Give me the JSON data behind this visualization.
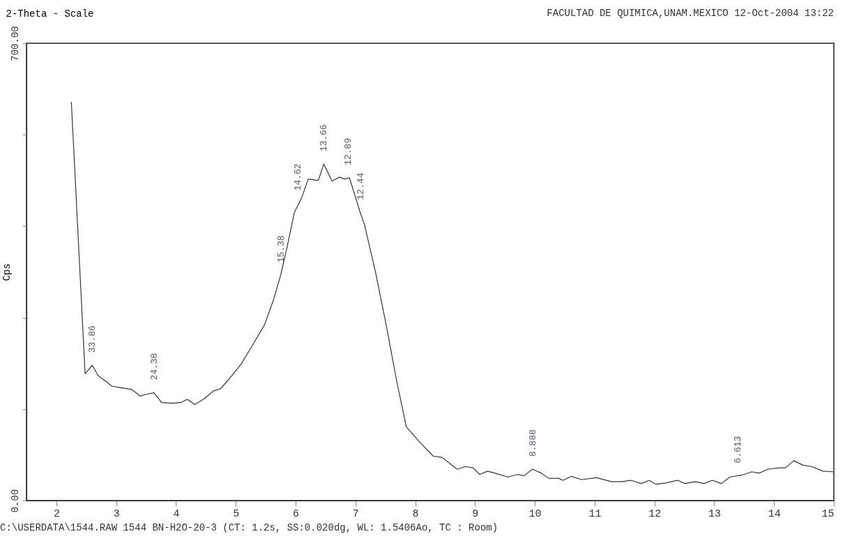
{
  "chart_data": {
    "type": "line",
    "title": "FACULTAD DE QUIMICA,UNAM.MEXICO 12-Oct-2004 13:22",
    "xlabel": "2-Theta - Scale",
    "ylabel": "Cps",
    "color": "#3a3040",
    "grid": false,
    "xlim": [
      1.5,
      15
    ],
    "xticks": [
      2,
      3,
      4,
      5,
      6,
      7,
      8,
      9,
      10,
      11,
      12,
      13,
      14,
      15
    ],
    "ylim": [
      0,
      700
    ],
    "yticks": [
      {
        "value": 0,
        "label": "0.00"
      },
      {
        "value": 140,
        "label": null
      },
      {
        "value": 280,
        "label": null
      },
      {
        "value": 420,
        "label": null
      },
      {
        "value": 560,
        "label": null
      },
      {
        "value": 700,
        "label": "700.00"
      }
    ],
    "x": [
      2.25,
      2.48,
      2.6,
      2.7,
      2.82,
      2.93,
      3.06,
      3.26,
      3.4,
      3.52,
      3.63,
      3.76,
      3.93,
      4.08,
      4.19,
      4.31,
      4.46,
      4.63,
      4.74,
      4.86,
      5.09,
      5.28,
      5.48,
      5.63,
      5.75,
      5.86,
      5.98,
      6.1,
      6.21,
      6.38,
      6.47,
      6.61,
      6.73,
      6.82,
      6.9,
      7.08,
      7.15,
      7.34,
      7.52,
      7.69,
      7.85,
      8.07,
      8.3,
      8.45,
      8.7,
      8.84,
      8.97,
      9.08,
      9.21,
      9.33,
      9.55,
      9.71,
      9.82,
      9.96,
      10.11,
      10.23,
      10.4,
      10.47,
      10.61,
      10.79,
      11.03,
      11.28,
      11.46,
      11.61,
      11.78,
      11.91,
      12.02,
      12.2,
      12.39,
      12.51,
      12.68,
      12.83,
      12.97,
      13.12,
      13.26,
      13.46,
      13.63,
      13.75,
      13.9,
      14.09,
      14.19,
      14.33,
      14.49,
      14.63,
      14.82,
      14.99
    ],
    "values": [
      610,
      194,
      207,
      191,
      183,
      175,
      173,
      170,
      160,
      163,
      165,
      150,
      149,
      150,
      155,
      147,
      155,
      168,
      171,
      183,
      209,
      238,
      269,
      307,
      345,
      389,
      441,
      463,
      492,
      490,
      515,
      489,
      495,
      492,
      494,
      441,
      423,
      348,
      266,
      183,
      113,
      90,
      68,
      66,
      48,
      52,
      50,
      40,
      45,
      42,
      36,
      40,
      38,
      48,
      42,
      34,
      34,
      31,
      37,
      32,
      35,
      29,
      29,
      31,
      26,
      31,
      25,
      27,
      31,
      26,
      29,
      26,
      31,
      26,
      36,
      39,
      44,
      42,
      48,
      50,
      50,
      61,
      54,
      52,
      45,
      44
    ],
    "annotations": [
      {
        "text": "33.86",
        "x": 2.6,
        "y": 207
      },
      {
        "text": "24.38",
        "x": 3.63,
        "y": 165
      },
      {
        "text": "15.38",
        "x": 5.75,
        "y": 345
      },
      {
        "text": "14.62",
        "x": 6.04,
        "y": 455
      },
      {
        "text": "13.66",
        "x": 6.47,
        "y": 515
      },
      {
        "text": "12.89",
        "x": 6.88,
        "y": 494
      },
      {
        "text": "12.44",
        "x": 7.08,
        "y": 441
      },
      {
        "text": "8.888",
        "x": 9.96,
        "y": 48
      },
      {
        "text": "6.613",
        "x": 13.39,
        "y": 38
      },
      "C:\\USERDATA\\1544.RAW 1544 BN-H2O-20-3 (CT:  1.2s, SS:0.020dg, WL: 1.5406Ao, TC : Room)"
    ]
  }
}
